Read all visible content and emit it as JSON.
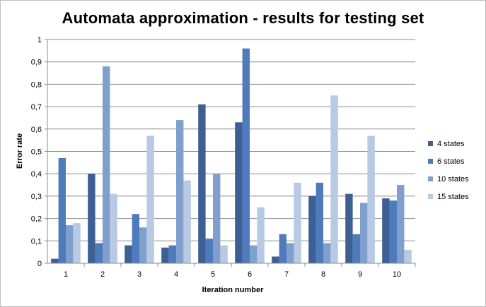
{
  "chart_data": {
    "type": "bar",
    "title": "Automata approximation - results for testing set",
    "xlabel": "Iteration number",
    "ylabel": "Error rate",
    "categories": [
      "1",
      "2",
      "3",
      "4",
      "5",
      "6",
      "7",
      "8",
      "9",
      "10"
    ],
    "ylim": [
      0,
      1
    ],
    "yticks": [
      "0",
      "0,1",
      "0,2",
      "0,3",
      "0,4",
      "0,5",
      "0,6",
      "0,7",
      "0,8",
      "0,9",
      "1"
    ],
    "grid": true,
    "legend_position": "right",
    "series": [
      {
        "name": "4 states",
        "color": "#3c5f94",
        "values": [
          0.02,
          0.4,
          0.08,
          0.07,
          0.71,
          0.63,
          0.03,
          0.3,
          0.31,
          0.29
        ]
      },
      {
        "name": "6 states",
        "color": "#4f7bbd",
        "values": [
          0.47,
          0.09,
          0.22,
          0.08,
          0.11,
          0.96,
          0.13,
          0.36,
          0.13,
          0.28
        ]
      },
      {
        "name": "10 states",
        "color": "#7f9fcc",
        "values": [
          0.17,
          0.88,
          0.16,
          0.64,
          0.4,
          0.08,
          0.09,
          0.09,
          0.27,
          0.35
        ]
      },
      {
        "name": "15 states",
        "color": "#b8c9e3",
        "values": [
          0.18,
          0.31,
          0.57,
          0.37,
          0.08,
          0.25,
          0.36,
          0.75,
          0.57,
          0.06
        ]
      }
    ]
  }
}
